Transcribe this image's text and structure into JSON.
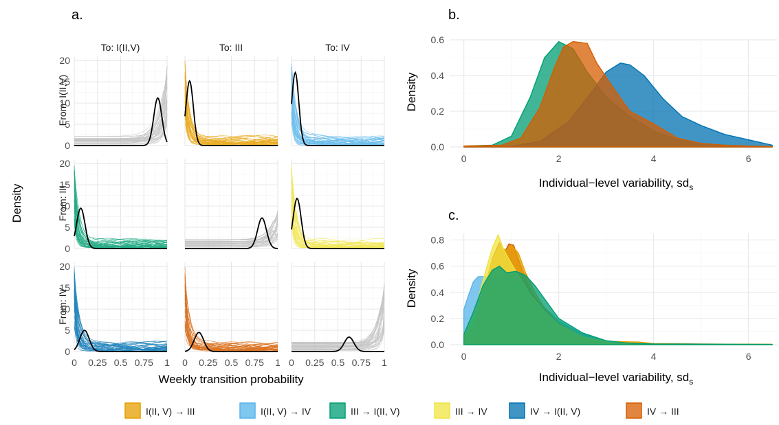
{
  "figure": {
    "panel_a_label": "a.",
    "panel_b_label": "b.",
    "panel_c_label": "c.",
    "panel_a_xlabel": "Weekly transition probability",
    "panel_a_ylabel": "Density",
    "panel_bc_xlabel": "Individual−level variability, sd",
    "panel_bc_xlabel_subscript": "s",
    "panel_bc_ylabel": "Density",
    "columns": [
      "To: I(II,V)",
      "To: III",
      "To: IV"
    ],
    "rows": [
      "From: I(II,V)",
      "From: III",
      "From: IV"
    ]
  },
  "colors": {
    "I(II, V) → III": "#E69F00",
    "I(II, V) → IV": "#56B4E9",
    "III → I(II, V)": "#009E73",
    "III → IV": "#F0E442",
    "IV → I(II, V)": "#0072B2",
    "IV → III": "#D55E00",
    "diagonal": "#bdbdbd",
    "posterior_line": "#000000"
  },
  "legend": [
    {
      "label": "I(II, V) → III",
      "color": "#E69F00"
    },
    {
      "label": "I(II, V) → IV",
      "color": "#56B4E9"
    },
    {
      "label": "III → I(II, V)",
      "color": "#009E73"
    },
    {
      "label": "III → IV",
      "color": "#F0E442"
    },
    {
      "label": "IV → I(II, V)",
      "color": "#0072B2"
    },
    {
      "label": "IV → III",
      "color": "#D55E00"
    }
  ],
  "chart_data": [
    {
      "panel": "a.",
      "type": "line",
      "xlabel": "Weekly transition probability",
      "ylabel": "Density",
      "xlim": [
        0,
        1
      ],
      "ylim": [
        0,
        21
      ],
      "xticks": [
        "0",
        "0.25",
        "0.5",
        "0.75",
        "1"
      ],
      "yticks": [
        "0",
        "5",
        "10",
        "15",
        "20"
      ],
      "facets": [
        {
          "row": "From: I(II,V)",
          "col": "To: I(II,V)",
          "fill": "diagonal",
          "fill_mode": "right",
          "line_peak_x": 0.9,
          "line_peak_y": 11.2,
          "spread_y": 19
        },
        {
          "row": "From: I(II,V)",
          "col": "To: III",
          "fill": "I(II, V) → III",
          "fill_mode": "left",
          "line_peak_x": 0.05,
          "line_peak_y": 15.2,
          "spread_y": 20
        },
        {
          "row": "From: I(II,V)",
          "col": "To: IV",
          "fill": "I(II, V) → IV",
          "fill_mode": "left",
          "line_peak_x": 0.04,
          "line_peak_y": 17.2,
          "spread_y": 20
        },
        {
          "row": "From: III",
          "col": "To: I(II,V)",
          "fill": "III → I(II, V)",
          "fill_mode": "left",
          "line_peak_x": 0.07,
          "line_peak_y": 9.5,
          "spread_y": 20
        },
        {
          "row": "From: III",
          "col": "To: III",
          "fill": "diagonal",
          "fill_mode": "right",
          "line_peak_x": 0.83,
          "line_peak_y": 7.2,
          "spread_y": 9
        },
        {
          "row": "From: III",
          "col": "To: IV",
          "fill": "III → IV",
          "fill_mode": "left",
          "line_peak_x": 0.06,
          "line_peak_y": 11.8,
          "spread_y": 20
        },
        {
          "row": "From: IV",
          "col": "To: I(II,V)",
          "fill": "IV → I(II, V)",
          "fill_mode": "left",
          "line_peak_x": 0.11,
          "line_peak_y": 5.0,
          "spread_y": 20
        },
        {
          "row": "From: IV",
          "col": "To: III",
          "fill": "IV → III",
          "fill_mode": "left",
          "line_peak_x": 0.15,
          "line_peak_y": 4.5,
          "spread_y": 20
        },
        {
          "row": "From: IV",
          "col": "To: IV",
          "fill": "diagonal",
          "fill_mode": "right",
          "line_peak_x": 0.62,
          "line_peak_y": 3.4,
          "spread_y": 17
        }
      ]
    },
    {
      "panel": "b.",
      "type": "area",
      "xlabel": "Individual−level variability, sd_s",
      "ylabel": "Density",
      "xlim": [
        -0.3,
        6.6
      ],
      "ylim": [
        0,
        0.6
      ],
      "xticks": [
        0,
        2,
        4,
        6
      ],
      "yticks": [
        "0.0",
        "0.2",
        "0.4",
        "0.6"
      ],
      "series": [
        {
          "name": "III → I(II, V)",
          "x": [
            0,
            0.6,
            1.0,
            1.4,
            1.7,
            2.0,
            2.3,
            2.6,
            3.0,
            3.5,
            4.0,
            4.5,
            5.0,
            5.5,
            6.0,
            6.5
          ],
          "y": [
            0.005,
            0.01,
            0.06,
            0.28,
            0.5,
            0.59,
            0.55,
            0.42,
            0.28,
            0.17,
            0.09,
            0.04,
            0.02,
            0.01,
            0.005,
            0.002
          ]
        },
        {
          "name": "IV → I(II, V)",
          "x": [
            0,
            1.0,
            1.6,
            2.2,
            2.7,
            3.0,
            3.3,
            3.5,
            3.8,
            4.2,
            4.6,
            5.0,
            5.5,
            6.0,
            6.5
          ],
          "y": [
            0.0,
            0.005,
            0.03,
            0.14,
            0.31,
            0.42,
            0.47,
            0.46,
            0.4,
            0.27,
            0.17,
            0.12,
            0.07,
            0.04,
            0.01
          ]
        },
        {
          "name": "IV → III",
          "x": [
            0,
            0.8,
            1.2,
            1.6,
            1.9,
            2.1,
            2.3,
            2.6,
            2.8,
            3.1,
            3.5,
            4.0,
            4.5,
            5.0,
            5.5,
            6.0,
            6.5
          ],
          "y": [
            0.005,
            0.01,
            0.05,
            0.22,
            0.44,
            0.56,
            0.59,
            0.58,
            0.47,
            0.35,
            0.2,
            0.13,
            0.05,
            0.02,
            0.01,
            0.005,
            0.002
          ]
        }
      ]
    },
    {
      "panel": "c.",
      "type": "area",
      "xlabel": "Individual−level variability, sd_s",
      "ylabel": "Density",
      "xlim": [
        -0.3,
        6.6
      ],
      "ylim": [
        0,
        0.85
      ],
      "xticks": [
        0,
        2,
        4,
        6
      ],
      "yticks": [
        "0.0",
        "0.2",
        "0.4",
        "0.6",
        "0.8"
      ],
      "series": [
        {
          "name": "I(II, V) → IV",
          "x": [
            0,
            0.1,
            0.2,
            0.3,
            0.45,
            0.6,
            0.8,
            1.0,
            1.3,
            1.6,
            2.0,
            2.5,
            3.0,
            3.5,
            4.0,
            5.0,
            6.5
          ],
          "y": [
            0.27,
            0.38,
            0.48,
            0.52,
            0.52,
            0.5,
            0.53,
            0.54,
            0.45,
            0.32,
            0.18,
            0.08,
            0.03,
            0.015,
            0.008,
            0.004,
            0.002
          ]
        },
        {
          "name": "IV → III",
          "x": [
            0,
            0.2,
            0.45,
            0.6,
            0.75,
            0.85,
            0.95,
            1.05,
            1.2,
            1.4,
            1.6,
            1.8,
            2.0,
            2.5,
            3.0,
            3.5,
            4.0,
            6.5
          ],
          "y": [
            0.05,
            0.15,
            0.45,
            0.66,
            0.78,
            0.7,
            0.77,
            0.76,
            0.6,
            0.42,
            0.3,
            0.2,
            0.14,
            0.06,
            0.025,
            0.01,
            0.004,
            0.002
          ]
        },
        {
          "name": "I(II, V) → III",
          "x": [
            0,
            0.2,
            0.45,
            0.6,
            0.75,
            0.9,
            1.0,
            1.15,
            1.3,
            1.5,
            1.7,
            2.0,
            2.5,
            3.0,
            3.7,
            4.0,
            6.5
          ],
          "y": [
            0.05,
            0.15,
            0.45,
            0.65,
            0.75,
            0.72,
            0.76,
            0.7,
            0.55,
            0.4,
            0.28,
            0.16,
            0.06,
            0.025,
            0.02,
            0.008,
            0.002
          ]
        },
        {
          "name": "III → IV",
          "x": [
            0,
            0.2,
            0.45,
            0.6,
            0.72,
            0.85,
            1.0,
            1.2,
            1.4,
            1.7,
            2.0,
            2.5,
            3.0,
            3.5,
            4.0,
            6.5
          ],
          "y": [
            0.08,
            0.22,
            0.55,
            0.74,
            0.84,
            0.72,
            0.62,
            0.5,
            0.38,
            0.25,
            0.15,
            0.06,
            0.025,
            0.01,
            0.004,
            0.002
          ]
        },
        {
          "name": "III → I(II, V)",
          "x": [
            0,
            0.2,
            0.4,
            0.6,
            0.75,
            0.9,
            1.1,
            1.3,
            1.5,
            1.8,
            2.0,
            2.5,
            3.0,
            3.5,
            4.0,
            6.5
          ],
          "y": [
            0.08,
            0.25,
            0.45,
            0.57,
            0.6,
            0.55,
            0.56,
            0.53,
            0.45,
            0.3,
            0.2,
            0.09,
            0.03,
            0.01,
            0.005,
            0.002
          ]
        }
      ]
    }
  ]
}
